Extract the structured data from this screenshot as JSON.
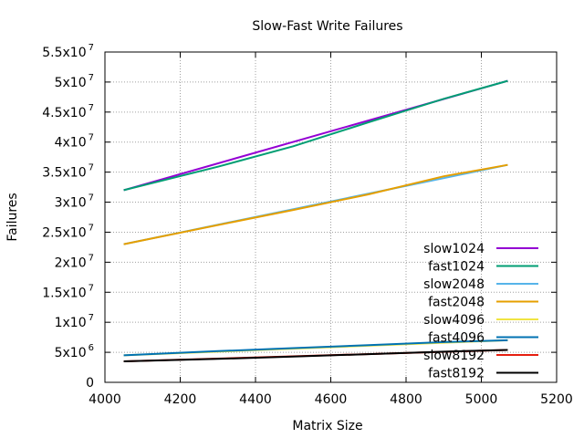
{
  "chart_data": {
    "type": "line",
    "title": "Slow-Fast Write Failures",
    "xlabel": "Matrix Size",
    "ylabel": "Failures",
    "xlim": [
      4000,
      5200
    ],
    "ylim": [
      0,
      55000000
    ],
    "xticks": [
      {
        "value": 4000,
        "label": "4000"
      },
      {
        "value": 4200,
        "label": "4200"
      },
      {
        "value": 4400,
        "label": "4400"
      },
      {
        "value": 4600,
        "label": "4600"
      },
      {
        "value": 4800,
        "label": "4800"
      },
      {
        "value": 5000,
        "label": "5000"
      },
      {
        "value": 5200,
        "label": "5200"
      }
    ],
    "yticks": [
      {
        "value": 0,
        "mantissa": "0",
        "exponent": ""
      },
      {
        "value": 5000000,
        "mantissa": "5x10",
        "exponent": "6"
      },
      {
        "value": 10000000,
        "mantissa": "1x10",
        "exponent": "7"
      },
      {
        "value": 15000000,
        "mantissa": "1.5x10",
        "exponent": "7"
      },
      {
        "value": 20000000,
        "mantissa": "2x10",
        "exponent": "7"
      },
      {
        "value": 25000000,
        "mantissa": "2.5x10",
        "exponent": "7"
      },
      {
        "value": 30000000,
        "mantissa": "3x10",
        "exponent": "7"
      },
      {
        "value": 35000000,
        "mantissa": "3.5x10",
        "exponent": "7"
      },
      {
        "value": 40000000,
        "mantissa": "4x10",
        "exponent": "7"
      },
      {
        "value": 45000000,
        "mantissa": "4.5x10",
        "exponent": "7"
      },
      {
        "value": 50000000,
        "mantissa": "5x10",
        "exponent": "7"
      },
      {
        "value": 55000000,
        "mantissa": "5.5x10",
        "exponent": "7"
      }
    ],
    "grid": true,
    "legend_position": "bottom-right",
    "series": [
      {
        "name": "slow1024",
        "color": "#9400d3",
        "x": [
          4050,
          5070
        ],
        "y": [
          32000000,
          50200000
        ]
      },
      {
        "name": "fast1024",
        "color": "#009e73",
        "x": [
          4050,
          4300,
          4500,
          4700,
          4900,
          5070
        ],
        "y": [
          32000000,
          35900000,
          39300000,
          43300000,
          47200000,
          50200000
        ]
      },
      {
        "name": "slow2048",
        "color": "#56b4e9",
        "x": [
          4050,
          5070
        ],
        "y": [
          23000000,
          36200000
        ]
      },
      {
        "name": "fast2048",
        "color": "#e69f00",
        "x": [
          4050,
          4300,
          4500,
          4700,
          4900,
          5070
        ],
        "y": [
          23000000,
          26200000,
          28700000,
          31300000,
          34300000,
          36200000
        ]
      },
      {
        "name": "slow4096",
        "color": "#f0e442",
        "x": [
          4050,
          5070
        ],
        "y": [
          4500000,
          7000000
        ]
      },
      {
        "name": "fast4096",
        "color": "#0072b2",
        "x": [
          4050,
          4300,
          4500,
          4700,
          4900,
          5070
        ],
        "y": [
          4500000,
          5200000,
          5700000,
          6200000,
          6700000,
          7000000
        ]
      },
      {
        "name": "slow8192",
        "color": "#e51e10",
        "x": [
          4050,
          5070
        ],
        "y": [
          3500000,
          5400000
        ]
      },
      {
        "name": "fast8192",
        "color": "#000000",
        "x": [
          4050,
          4300,
          4500,
          4700,
          4900,
          5070
        ],
        "y": [
          3500000,
          3900000,
          4300000,
          4700000,
          5100000,
          5400000
        ]
      }
    ]
  }
}
